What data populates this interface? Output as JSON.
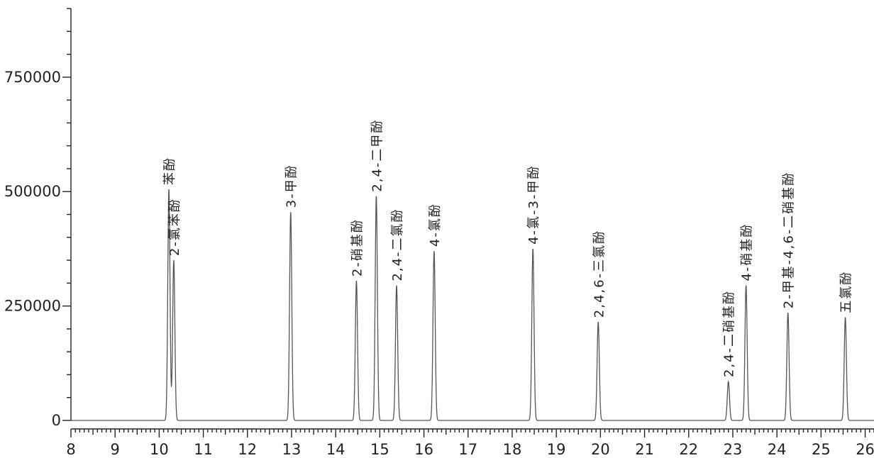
{
  "chart_data": {
    "type": "line",
    "title": "",
    "xlabel": "",
    "ylabel": "",
    "xlim": [
      8,
      26.2
    ],
    "ylim": [
      0,
      900000
    ],
    "x_ticks": [
      "8",
      "9",
      "10",
      "11",
      "12",
      "13",
      "14",
      "15",
      "16",
      "17",
      "18",
      "19",
      "20",
      "21",
      "22",
      "23",
      "24",
      "25",
      "26"
    ],
    "y_ticks": [
      "0",
      "250000",
      "500000",
      "750000"
    ],
    "grid": false,
    "peaks": [
      {
        "name": "苯酚",
        "x": 10.22,
        "y": 505000
      },
      {
        "name": "2-氯苯酚",
        "x": 10.33,
        "y": 350000
      },
      {
        "name": "3-甲酚",
        "x": 12.98,
        "y": 455000
      },
      {
        "name": "2-硝基酚",
        "x": 14.47,
        "y": 305000
      },
      {
        "name": "2,4-二甲酚",
        "x": 14.92,
        "y": 490000
      },
      {
        "name": "2,4-二氯酚",
        "x": 15.38,
        "y": 295000
      },
      {
        "name": "4-氯酚",
        "x": 16.23,
        "y": 370000
      },
      {
        "name": "4-氯-3-甲酚",
        "x": 18.47,
        "y": 375000
      },
      {
        "name": "2,4,6-三氯酚",
        "x": 19.95,
        "y": 215000
      },
      {
        "name": "2,4-二硝基酚",
        "x": 22.9,
        "y": 85000
      },
      {
        "name": "4-硝基酚",
        "x": 23.3,
        "y": 295000
      },
      {
        "name": "2-甲基-4,6-二硝基酚",
        "x": 24.25,
        "y": 235000
      },
      {
        "name": "五氯酚",
        "x": 25.55,
        "y": 225000
      }
    ]
  }
}
